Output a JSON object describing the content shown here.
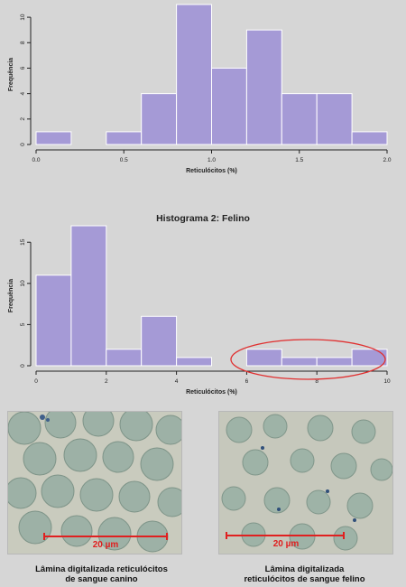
{
  "chart_data": [
    {
      "type": "bar",
      "title": "",
      "xlabel": "Reticulócitos (%)",
      "ylabel": "Frequência",
      "bin_edges": [
        0.0,
        0.2,
        0.4,
        0.6,
        0.8,
        1.0,
        1.2,
        1.4,
        1.6,
        1.8,
        2.0
      ],
      "values": [
        1,
        0,
        1,
        4,
        11,
        6,
        9,
        4,
        4,
        1
      ],
      "xlim": [
        0,
        2
      ],
      "ylim": [
        0,
        11
      ],
      "xticks": [
        "0.0",
        "0.5",
        "1.0",
        "1.5",
        "2.0"
      ],
      "yticks": [
        "0",
        "2",
        "4",
        "6",
        "8",
        "10"
      ],
      "bar_color": "#a59ad6"
    },
    {
      "type": "bar",
      "title": "Histograma 2: Felino",
      "xlabel": "Reticulócitos (%)",
      "ylabel": "Frequência",
      "bin_edges": [
        0,
        1,
        2,
        3,
        4,
        5,
        6,
        7,
        8,
        9,
        10
      ],
      "values": [
        11,
        17,
        2,
        6,
        1,
        0,
        2,
        1,
        1,
        2
      ],
      "xlim": [
        0,
        10
      ],
      "ylim": [
        0,
        17
      ],
      "xticks": [
        "0",
        "2",
        "4",
        "6",
        "8",
        "10"
      ],
      "yticks": [
        "0",
        "5",
        "10",
        "15"
      ],
      "bar_color": "#a59ad6",
      "annotation": {
        "shape": "ellipse",
        "color": "#e03030",
        "x_range": [
          5.5,
          10
        ]
      }
    }
  ],
  "images": {
    "canine": {
      "scale_label": "20 µm",
      "caption_lines": [
        "Lâmina digitalizada reticulócitos",
        "de sangue canino"
      ]
    },
    "feline": {
      "scale_label": "20 µm",
      "caption_lines": [
        "Lâmina digitalizada",
        "reticulócitos de sangue felino"
      ]
    }
  }
}
